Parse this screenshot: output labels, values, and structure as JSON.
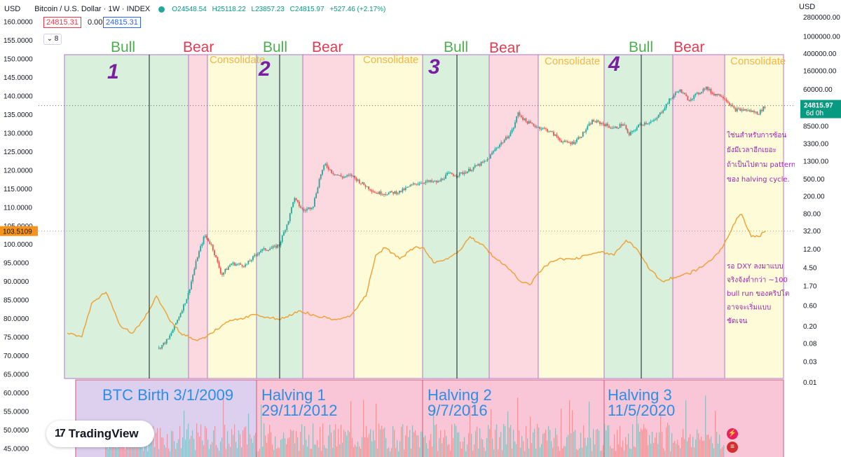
{
  "header": {
    "left_axis_label": "USD",
    "symbol": "Bitcoin / U.S. Dollar · 1W · INDEX",
    "open": "O24548.54",
    "high": "H25118.22",
    "low": "L23857.23",
    "close": "C24815.97",
    "change": "+527.46 (+2.17%)",
    "sell_price": "24815.31",
    "spread": "0.00",
    "buy_price": "24815.31",
    "indicators_toggle": "8",
    "right_axis_label": "USD"
  },
  "colors": {
    "bull_zone": "#d8f0dc",
    "bear_zone": "#fcd8e0",
    "consolidate_zone": "#fdfbd8",
    "zone_border": "#b276c8",
    "bull_text": "#4caf50",
    "bear_text": "#e53950",
    "consolidate_text": "#f0b64a",
    "cycle_number": "#7b1fa2",
    "halving_text": "#2b8ee8",
    "halving_band": "#f8c6d6",
    "birth_band": "#ddd0ee",
    "thai_text": "#9c27b0",
    "dxy_line": "#f0a030",
    "candle_up": "#26a69a",
    "candle_down": "#ef5350",
    "current_btc_tag": "#089981",
    "current_dxy_tag": "#f7931a"
  },
  "annotations": {
    "zones": [
      {
        "label": "Bull",
        "kind": "bull"
      },
      {
        "label": "Bear",
        "kind": "bear"
      },
      {
        "label": "Consolidate",
        "kind": "consolidate"
      },
      {
        "label": "Bull",
        "kind": "bull"
      },
      {
        "label": "Bear",
        "kind": "bear"
      },
      {
        "label": "Consolidate",
        "kind": "consolidate"
      },
      {
        "label": "Bull",
        "kind": "bull"
      },
      {
        "label": "Bear",
        "kind": "bear"
      },
      {
        "label": "Consolidate",
        "kind": "consolidate"
      },
      {
        "label": "Bull",
        "kind": "bull"
      },
      {
        "label": "Bear",
        "kind": "bear"
      },
      {
        "label": "Consolidate",
        "kind": "consolidate"
      }
    ],
    "cycle_numbers": [
      "1",
      "2",
      "3",
      "4"
    ],
    "bands": [
      {
        "line1": "BTC Birth 3/1/2009",
        "line2": "",
        "kind": "birth"
      },
      {
        "line1": "Halving 1",
        "line2": "29/11/2012",
        "kind": "halving"
      },
      {
        "line1": "Halving 2",
        "line2": "9/7/2016",
        "kind": "halving"
      },
      {
        "line1": "Halving 3",
        "line2": "11/5/2020",
        "kind": "halving"
      }
    ],
    "note_top": [
      "ใช่นสำหรับการซ้อน",
      "ยังมีเวลาอีกเยอะ",
      "ถ้าเป็นไปตาม pattern",
      "ของ halving cycle."
    ],
    "note_bottom": [
      "รอ DXY ลงมาแบบ",
      "จริงจังต่ำกว่า ~100",
      "bull run ของคริปโต",
      "อาจจะเริ่มแบบ",
      "ชัดเจน"
    ]
  },
  "chart_data": {
    "type": "line",
    "title": "Bitcoin / U.S. Dollar · 1W · INDEX",
    "left_axis": {
      "label": "USD",
      "ticks": [
        "160.0000",
        "155.0000",
        "150.0000",
        "145.0000",
        "140.0000",
        "135.0000",
        "130.0000",
        "125.0000",
        "120.0000",
        "115.0000",
        "110.0000",
        "105.0000",
        "100.0000",
        "95.0000",
        "90.0000",
        "85.0000",
        "80.0000",
        "75.0000",
        "70.0000",
        "65.0000",
        "60.0000",
        "55.0000",
        "50.0000",
        "45.0000"
      ],
      "range": [
        43,
        162
      ]
    },
    "right_axis": {
      "label": "USD",
      "scale": "log",
      "ticks": [
        "2800000.00",
        "1000000.00",
        "400000.00",
        "160000.00",
        "60000.00",
        "24815.97",
        "8500.00",
        "3300.00",
        "1300.00",
        "500.00",
        "200.00",
        "80.00",
        "32.00",
        "12.00",
        "4.50",
        "1.70",
        "0.60",
        "0.20",
        "0.08",
        "0.03",
        "0.01"
      ]
    },
    "current_btc": {
      "value": "24815.97",
      "countdown": "6d 0h"
    },
    "current_dxy": {
      "value": "103.5109"
    },
    "series": [
      {
        "name": "",
        "axis": "right",
        "x": [
          2010.5,
          2010.7,
          2010.9,
          2011.1,
          2011.3,
          2011.45,
          2011.6,
          2011.8,
          2012.0,
          2012.3,
          2012.6,
          2012.9,
          2013.0,
          2013.2,
          2013.3,
          2013.5,
          2013.7,
          2013.85,
          2013.95,
          2014.1,
          2014.3,
          2014.5,
          2014.7,
          2015.0,
          2015.2,
          2015.5,
          2015.8,
          2016.0,
          2016.3,
          2016.5,
          2016.7,
          2016.9,
          2017.1,
          2017.3,
          2017.5,
          2017.7,
          2017.85,
          2017.96,
          2018.1,
          2018.3,
          2018.6,
          2018.9,
          2019.1,
          2019.3,
          2019.5,
          2019.7,
          2019.95,
          2020.15,
          2020.25,
          2020.5,
          2020.8,
          2020.95,
          2021.1,
          2021.3,
          2021.5,
          2021.7,
          2021.85,
          2022.0,
          2022.2,
          2022.45,
          2022.7,
          2022.95,
          2023.1
        ],
        "values": [
          0.06,
          0.1,
          0.3,
          1.0,
          8.0,
          25,
          14,
          3.0,
          5.5,
          5.0,
          11,
          13,
          15,
          60,
          180,
          90,
          120,
          600,
          1100,
          700,
          550,
          600,
          400,
          240,
          230,
          250,
          380,
          430,
          420,
          650,
          620,
          750,
          1000,
          1300,
          2600,
          4200,
          7000,
          17000,
          11000,
          8500,
          6500,
          3500,
          3400,
          5500,
          11000,
          9500,
          7300,
          9500,
          5000,
          9300,
          11000,
          19000,
          33000,
          58000,
          34000,
          47000,
          66000,
          47000,
          42000,
          20000,
          19500,
          16500,
          24815.97
        ]
      },
      {
        "name": "",
        "axis": "left",
        "x": [
          2008.6,
          2008.9,
          2009.1,
          2009.4,
          2009.7,
          2009.95,
          2010.2,
          2010.45,
          2010.7,
          2010.95,
          2011.3,
          2011.6,
          2011.9,
          2012.2,
          2012.5,
          2012.8,
          2013.1,
          2013.4,
          2013.7,
          2014.0,
          2014.3,
          2014.5,
          2014.8,
          2015.0,
          2015.2,
          2015.5,
          2015.8,
          2016.0,
          2016.2,
          2016.5,
          2016.8,
          2016.96,
          2017.2,
          2017.5,
          2017.8,
          2018.0,
          2018.2,
          2018.5,
          2018.8,
          2019.1,
          2019.4,
          2019.7,
          2019.95,
          2020.2,
          2020.4,
          2020.7,
          2020.95,
          2021.2,
          2021.5,
          2021.8,
          2022.0,
          2022.2,
          2022.5,
          2022.6,
          2022.8,
          2022.95,
          2023.1
        ],
        "values": [
          76,
          75,
          84,
          87,
          78,
          76,
          80,
          86,
          80,
          76,
          74,
          76,
          79,
          80,
          81,
          80,
          80,
          82,
          81,
          80,
          80,
          81,
          86,
          97,
          99,
          96,
          99,
          99,
          95,
          96,
          99,
          102,
          100,
          96,
          93,
          90,
          89,
          94,
          96,
          96,
          97,
          98,
          97,
          101,
          99,
          93,
          90,
          91,
          92,
          94,
          96,
          99,
          107,
          108,
          102,
          102,
          103.5109
        ]
      }
    ],
    "xlim": [
      2008.0,
      2023.5
    ],
    "grid": false,
    "legend": "none"
  },
  "footer": {
    "logo_text": "TradingView"
  }
}
